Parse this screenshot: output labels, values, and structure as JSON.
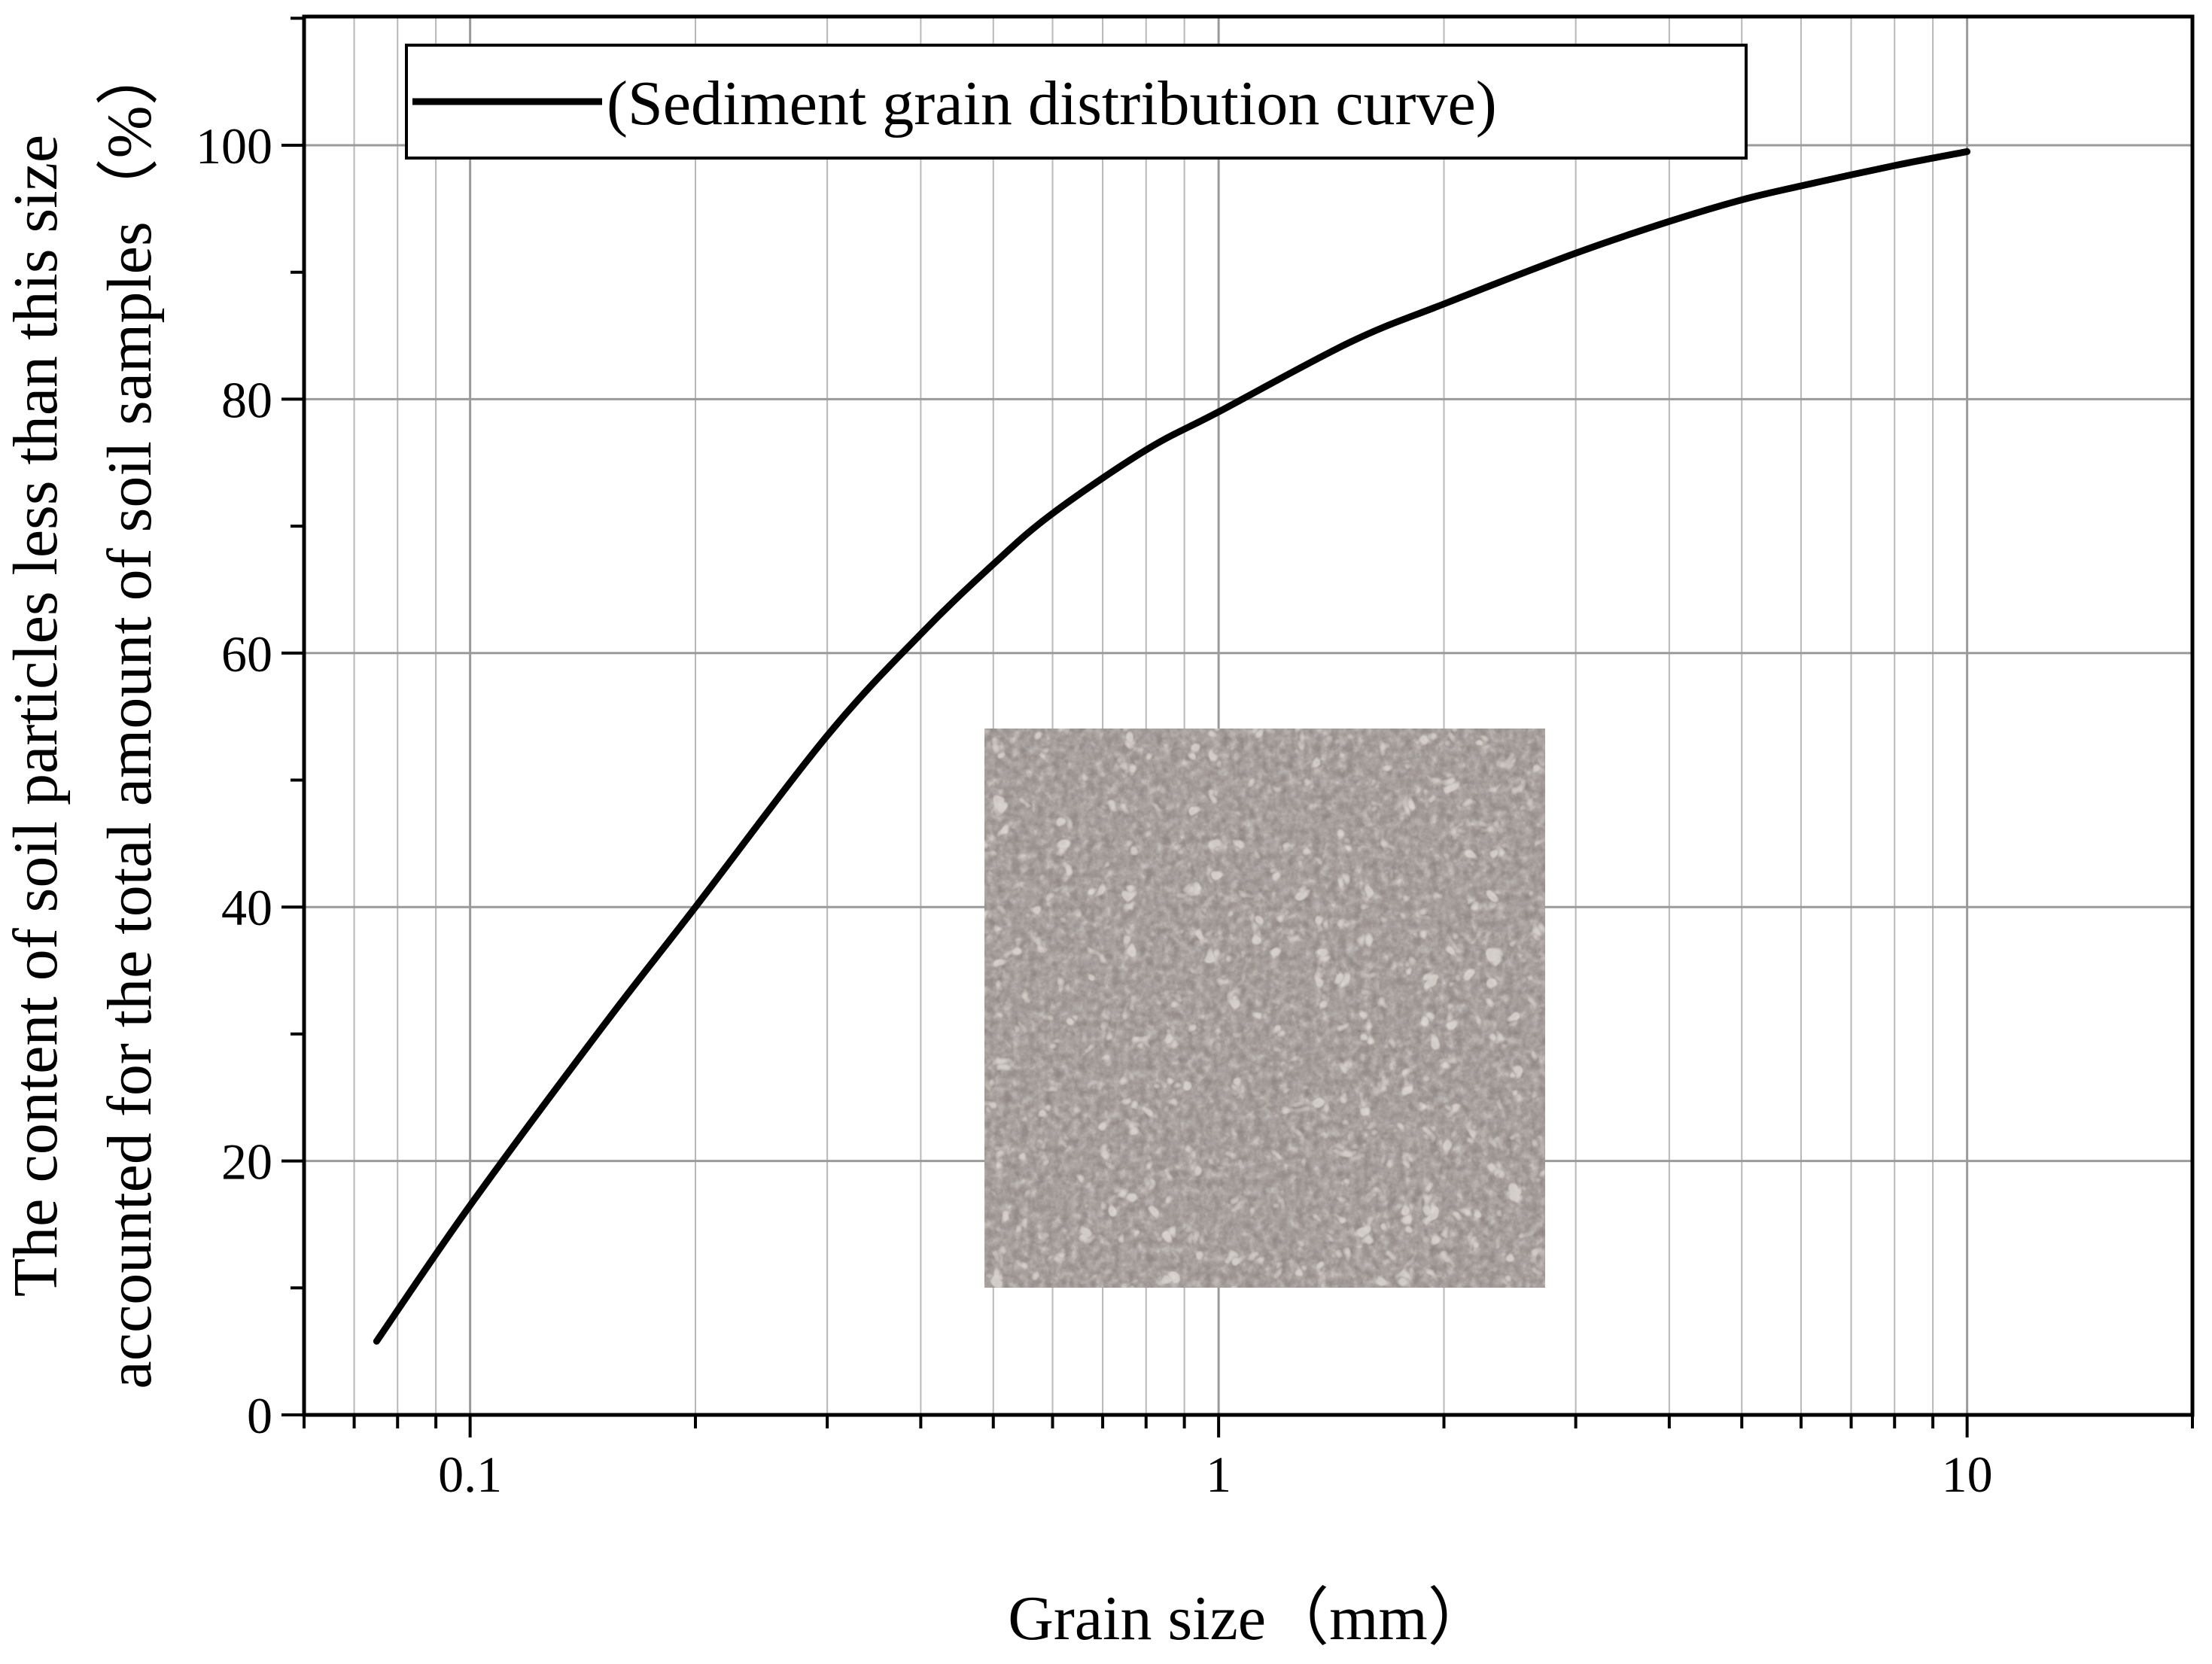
{
  "chart_data": {
    "type": "line",
    "xlabel": "Grain size（mm）",
    "ylabel_lines": [
      "The content of soil particles less than this size",
      "accounted for the total amount of soil samples（%）"
    ],
    "x_scale": "log",
    "xlim": [
      0.06,
      20
    ],
    "ylim": [
      0,
      100
    ],
    "x_ticks": [
      {
        "value": 0.1,
        "label": "0.1"
      },
      {
        "value": 1,
        "label": "1"
      },
      {
        "value": 10,
        "label": "10"
      }
    ],
    "y_ticks": [
      {
        "value": 0,
        "label": "0"
      },
      {
        "value": 20,
        "label": "20"
      },
      {
        "value": 40,
        "label": "40"
      },
      {
        "value": 60,
        "label": "60"
      },
      {
        "value": 80,
        "label": "80"
      },
      {
        "value": 100,
        "label": "100"
      }
    ],
    "grid": true,
    "legend_position": "top-left",
    "series": [
      {
        "name": "(Sediment grain distribution curve)",
        "color": "#000000",
        "x": [
          0.075,
          0.1,
          0.15,
          0.2,
          0.3,
          0.4,
          0.5,
          0.6,
          0.8,
          1.0,
          1.5,
          2.0,
          3.0,
          4.0,
          5.0,
          6.0,
          8.0,
          10.0
        ],
        "y": [
          5.8,
          16.5,
          30.5,
          40.0,
          53.5,
          61.5,
          67.0,
          71.0,
          76.0,
          79.0,
          84.5,
          87.5,
          91.5,
          94.0,
          95.7,
          96.8,
          98.4,
          99.5
        ]
      }
    ],
    "inset_image": "soil-sample-photo"
  }
}
